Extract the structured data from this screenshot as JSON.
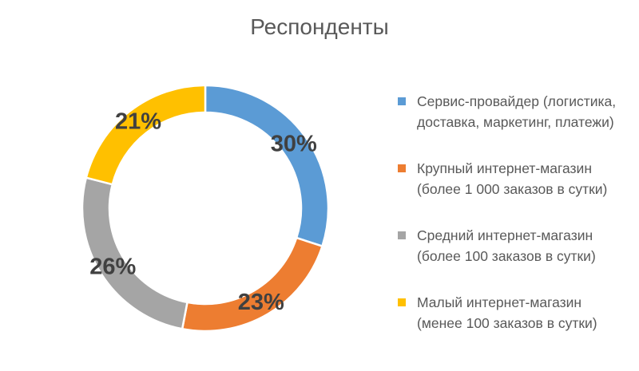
{
  "chart_data": {
    "type": "donut",
    "title": "Респонденты",
    "legend_position": "right",
    "series": [
      {
        "label_lines": [
          "Сервис-провайдер (логистика,",
          "доставка, маркетинг, платежи)"
        ],
        "value": 30,
        "display": "30%",
        "color": "#5B9BD5"
      },
      {
        "label_lines": [
          "Крупный интернет-магазин",
          "(более 1 000 заказов в сутки)"
        ],
        "value": 23,
        "display": "23%",
        "color": "#ED7D31"
      },
      {
        "label_lines": [
          "Средний интернет-магазин",
          "(более 100 заказов в сутки)"
        ],
        "value": 26,
        "display": "26%",
        "color": "#A5A5A5"
      },
      {
        "label_lines": [
          "Малый интернет-магазин",
          "(менее 100 заказов в сутки)"
        ],
        "value": 21,
        "display": "21%",
        "color": "#FFC000"
      }
    ]
  }
}
